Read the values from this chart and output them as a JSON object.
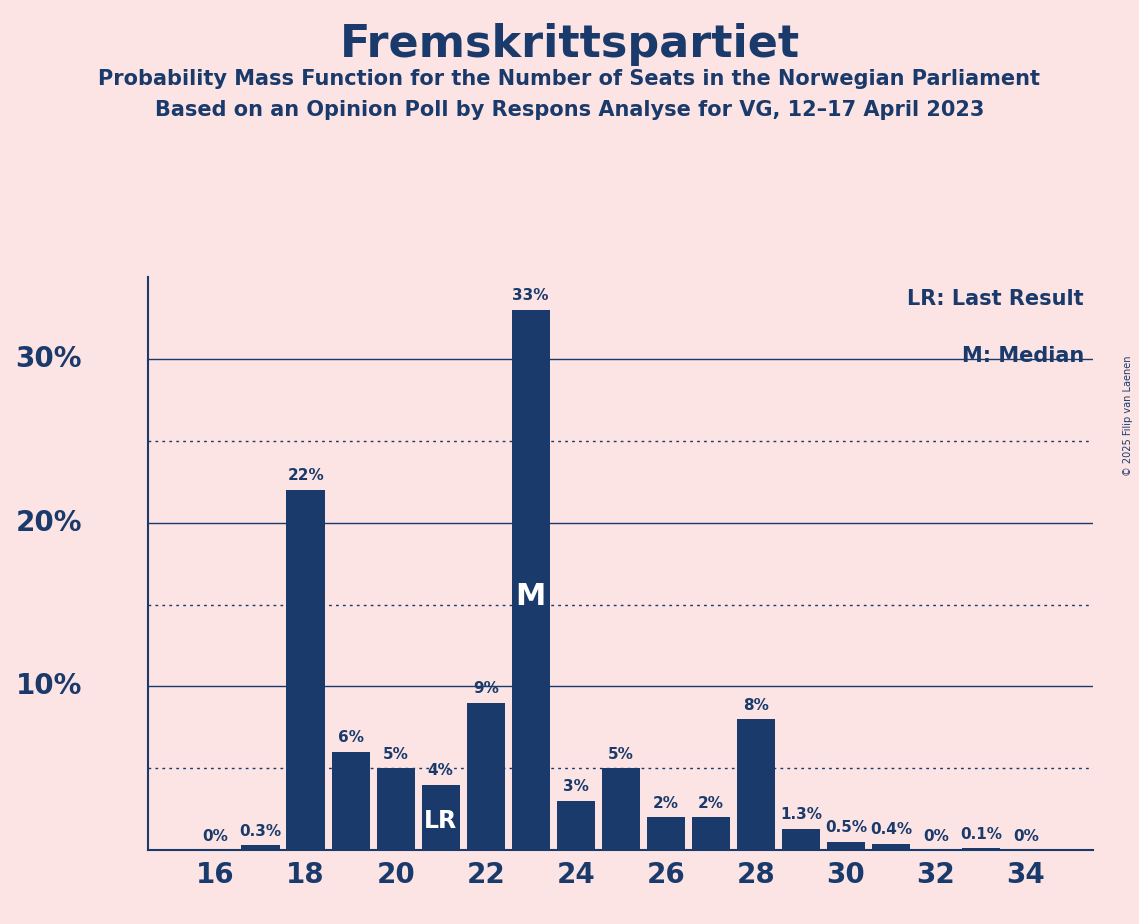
{
  "title": "Fremskrittspartiet",
  "subtitle1": "Probability Mass Function for the Number of Seats in the Norwegian Parliament",
  "subtitle2": "Based on an Opinion Poll by Respons Analyse for VG, 12–17 April 2023",
  "copyright": "© 2025 Filip van Laenen",
  "seats": [
    16,
    17,
    18,
    19,
    20,
    21,
    22,
    23,
    24,
    25,
    26,
    27,
    28,
    29,
    30,
    31,
    32,
    33,
    34
  ],
  "probabilities": [
    0.0,
    0.3,
    22.0,
    6.0,
    5.0,
    4.0,
    9.0,
    33.0,
    3.0,
    5.0,
    2.0,
    2.0,
    8.0,
    1.3,
    0.5,
    0.4,
    0.0,
    0.1,
    0.0
  ],
  "labels": [
    "0%",
    "0.3%",
    "22%",
    "6%",
    "5%",
    "4%",
    "9%",
    "33%",
    "3%",
    "5%",
    "2%",
    "2%",
    "8%",
    "1.3%",
    "0.5%",
    "0.4%",
    "0%",
    "0.1%",
    "0%"
  ],
  "bar_color": "#1a3a6b",
  "background_color": "#fce4e4",
  "text_color": "#1a3a6b",
  "grid_color": "#1a3a6b",
  "axis_line_color": "#1a3a6b",
  "median_seat": 23,
  "last_result_seat": 21,
  "ylim_max": 35,
  "solid_yticks": [
    10,
    20,
    30
  ],
  "dotted_yticks": [
    5,
    15,
    25
  ],
  "ylabel_ticks": [
    10,
    20,
    30
  ],
  "legend_lr": "LR: Last Result",
  "legend_m": "M: Median",
  "bar_label_fontsize": 11,
  "axis_label_fontsize": 20,
  "title_fontsize": 32,
  "subtitle_fontsize": 15,
  "legend_fontsize": 15,
  "lr_m_fontsize_lr": 17,
  "lr_m_fontsize_m": 22
}
